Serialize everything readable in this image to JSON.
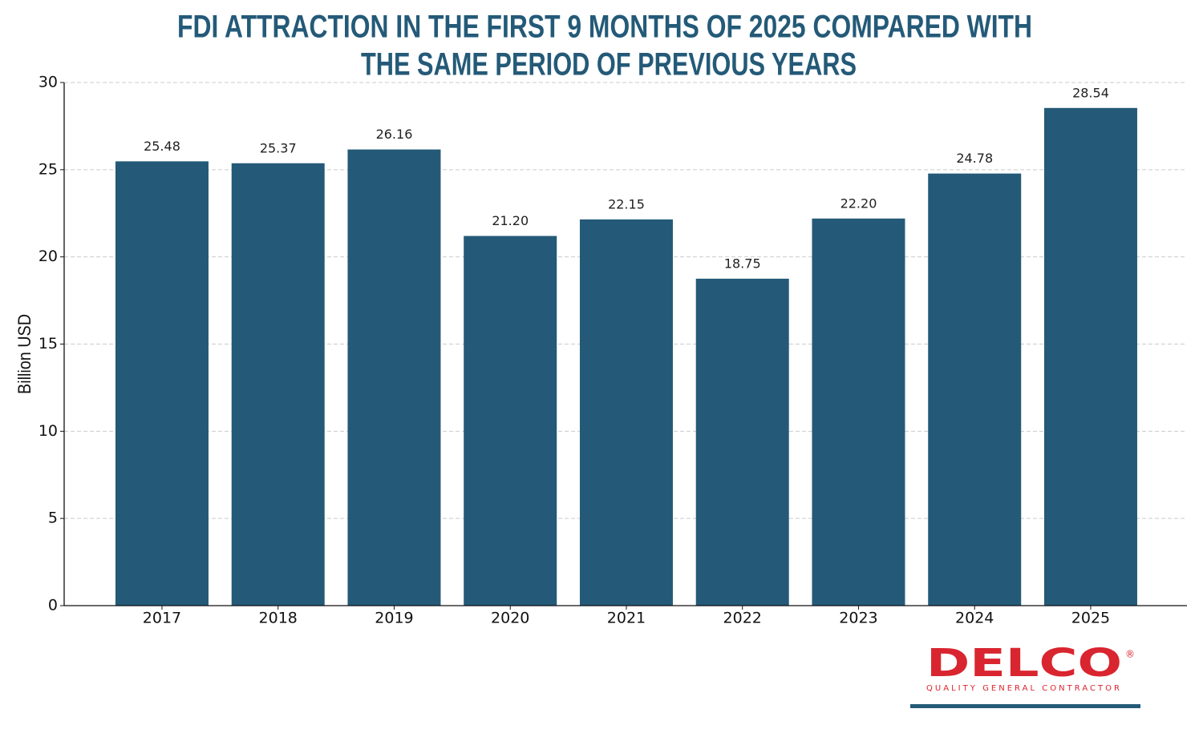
{
  "chart_data": {
    "type": "bar",
    "title": [
      "FDI ATTRACTION IN THE FIRST 9 MONTHS OF 2025 COMPARED WITH",
      "THE SAME PERIOD OF PREVIOUS YEARS"
    ],
    "y_label": "Billion USD",
    "categories": [
      "2017",
      "2018",
      "2019",
      "2020",
      "2021",
      "2022",
      "2023",
      "2024",
      "2025"
    ],
    "values": [
      25.48,
      25.37,
      26.16,
      21.2,
      22.15,
      18.75,
      22.2,
      24.78,
      28.54
    ],
    "value_labels": [
      "25.48",
      "25.37",
      "26.16",
      "21.20",
      "22.15",
      "18.75",
      "22.20",
      "24.78",
      "28.54"
    ],
    "color": "#245a78",
    "ylim": [
      0,
      30
    ],
    "yticks": [
      0,
      5,
      10,
      15,
      20,
      25,
      30
    ],
    "grid": true
  },
  "logo": {
    "name": "DELCO",
    "mark": "®",
    "tagline": "QUALITY GENERAL CONTRACTOR"
  }
}
